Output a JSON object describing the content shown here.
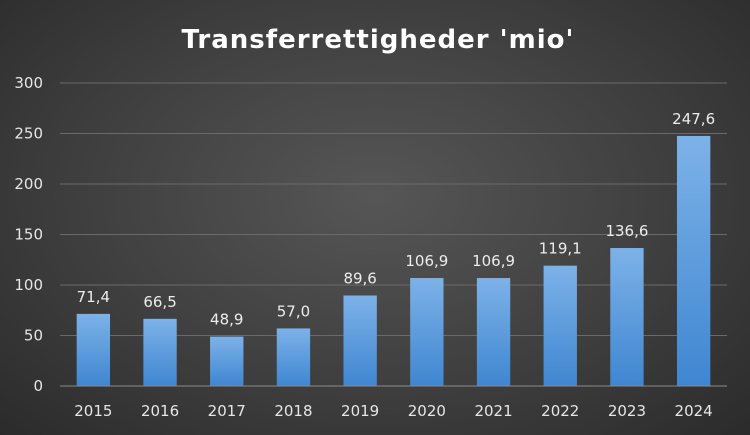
{
  "colors": {
    "bar_top": "#7db2e8",
    "bar_bottom": "#3f86d1",
    "gridline": "#6a6a6a",
    "axis": "#8a8a8a"
  },
  "chart_data": {
    "type": "bar",
    "title": "Transferrettigheder 'mio'",
    "xlabel": "",
    "ylabel": "",
    "categories": [
      "2015",
      "2016",
      "2017",
      "2018",
      "2019",
      "2020",
      "2021",
      "2022",
      "2023",
      "2024"
    ],
    "values": [
      71.4,
      66.5,
      48.9,
      57.0,
      89.6,
      106.9,
      106.9,
      119.1,
      136.6,
      247.6
    ],
    "data_labels": [
      "71,4",
      "66,5",
      "48,9",
      "57,0",
      "89,6",
      "106,9",
      "106,9",
      "119,1",
      "136,6",
      "247,6"
    ],
    "ylim": [
      0,
      300
    ],
    "yticks": [
      0,
      50,
      100,
      150,
      200,
      250,
      300
    ],
    "grid": true,
    "legend": "none"
  }
}
